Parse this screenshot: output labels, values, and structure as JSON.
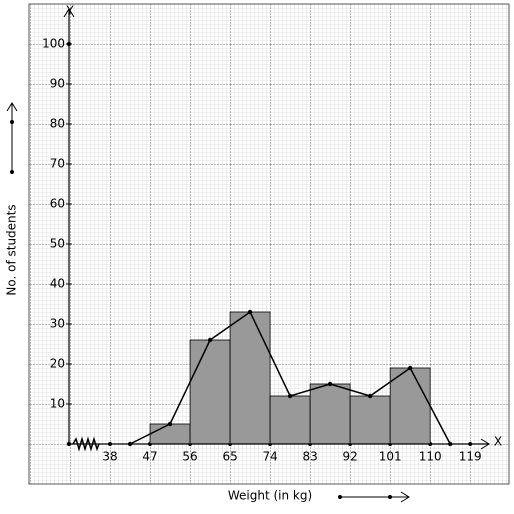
{
  "chart_data": {
    "type": "histogram",
    "xlabel": "Weight (in kg)",
    "ylabel": "No. of students",
    "x_axis_label": "X",
    "y_axis_label": "Y",
    "bins": [
      47,
      56,
      65,
      74,
      83,
      92,
      101,
      110
    ],
    "values": [
      5,
      26,
      33,
      12,
      15,
      12,
      19
    ],
    "color": "#999999",
    "polygon": {
      "x": [
        42.5,
        51.5,
        60.5,
        69.5,
        78.5,
        87.5,
        96.5,
        105.5,
        114.5
      ],
      "values": [
        0,
        5,
        26,
        33,
        12,
        15,
        12,
        19,
        0
      ],
      "color": "#000000"
    },
    "xlim": [
      29,
      123
    ],
    "ylim": [
      0,
      110
    ],
    "xticks": [
      38,
      47,
      56,
      65,
      74,
      83,
      92,
      101,
      110,
      119
    ],
    "yticks": [
      10,
      20,
      30,
      40,
      50,
      60,
      70,
      80,
      90,
      100
    ],
    "grid": true
  }
}
